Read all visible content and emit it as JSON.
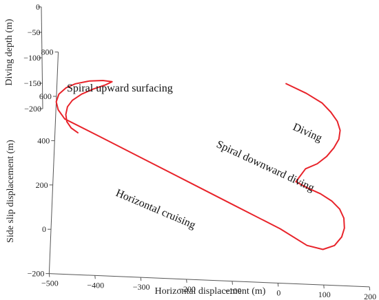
{
  "chart_data": {
    "type": "line",
    "projection": "3d",
    "title": "",
    "xlabel": "Horizontal displacement (m)",
    "ylabel": "Side slip displacement (m)",
    "zlabel": "Diving depth (m)",
    "x_ticks": [
      -500,
      -400,
      -300,
      -200,
      -100,
      0,
      100,
      200
    ],
    "y_ticks": [
      -200,
      0,
      200,
      400,
      600,
      800
    ],
    "z_ticks": [
      0,
      -50,
      -100,
      -150,
      -200
    ],
    "x_tick_labels": [
      "−500",
      "−400",
      "−300",
      "−200",
      "−100",
      "0",
      "100",
      "200"
    ],
    "y_tick_labels": [
      "−200",
      "0",
      "200",
      "400",
      "600",
      "800"
    ],
    "z_tick_labels": [
      "0",
      "−50",
      "−100",
      "−150",
      "−200"
    ],
    "xlim": [
      -500,
      200
    ],
    "ylim": [
      -200,
      800
    ],
    "zlim": [
      -200,
      0
    ],
    "grid": false,
    "legend": "none",
    "series_color": "#e8232a",
    "annotations": [
      {
        "key": "diving",
        "text": "Diving"
      },
      {
        "key": "spiral_down",
        "text": "Spiral downward diving"
      },
      {
        "key": "cruising",
        "text": "Horizontal cruising"
      },
      {
        "key": "spiral_up",
        "text": "Spiral upward surfacing"
      }
    ],
    "series": [
      {
        "x": [
          0,
          45,
          80,
          100,
          115,
          122,
          120,
          110,
          95,
          75,
          50,
          30,
          55,
          85,
          110,
          128,
          138,
          140,
          135,
          120,
          95,
          60,
          0,
          -100,
          -200,
          -300,
          -400,
          -480,
          -495,
          -500,
          -495,
          -480,
          -460,
          -430,
          -400,
          -380,
          -395,
          -420,
          -445,
          -465,
          -475,
          -478,
          -475,
          -465,
          -450
        ],
        "y": [
          700,
          660,
          620,
          580,
          540,
          500,
          460,
          420,
          380,
          345,
          320,
          260,
          235,
          210,
          180,
          145,
          105,
          60,
          20,
          -20,
          -40,
          -25,
          45,
          140,
          235,
          330,
          425,
          500,
          540,
          575,
          610,
          640,
          660,
          675,
          680,
          676,
          660,
          640,
          615,
          585,
          555,
          520,
          488,
          460,
          440
        ],
        "z": [
          0,
          0,
          0,
          0,
          0,
          0,
          0,
          0,
          0,
          0,
          0,
          0,
          0,
          0,
          0,
          0,
          0,
          0,
          0,
          0,
          0,
          0,
          0,
          0,
          0,
          0,
          0,
          0,
          0,
          0,
          0,
          0,
          0,
          0,
          0,
          0,
          0,
          0,
          0,
          0,
          0,
          0,
          0,
          0,
          0
        ]
      }
    ]
  }
}
